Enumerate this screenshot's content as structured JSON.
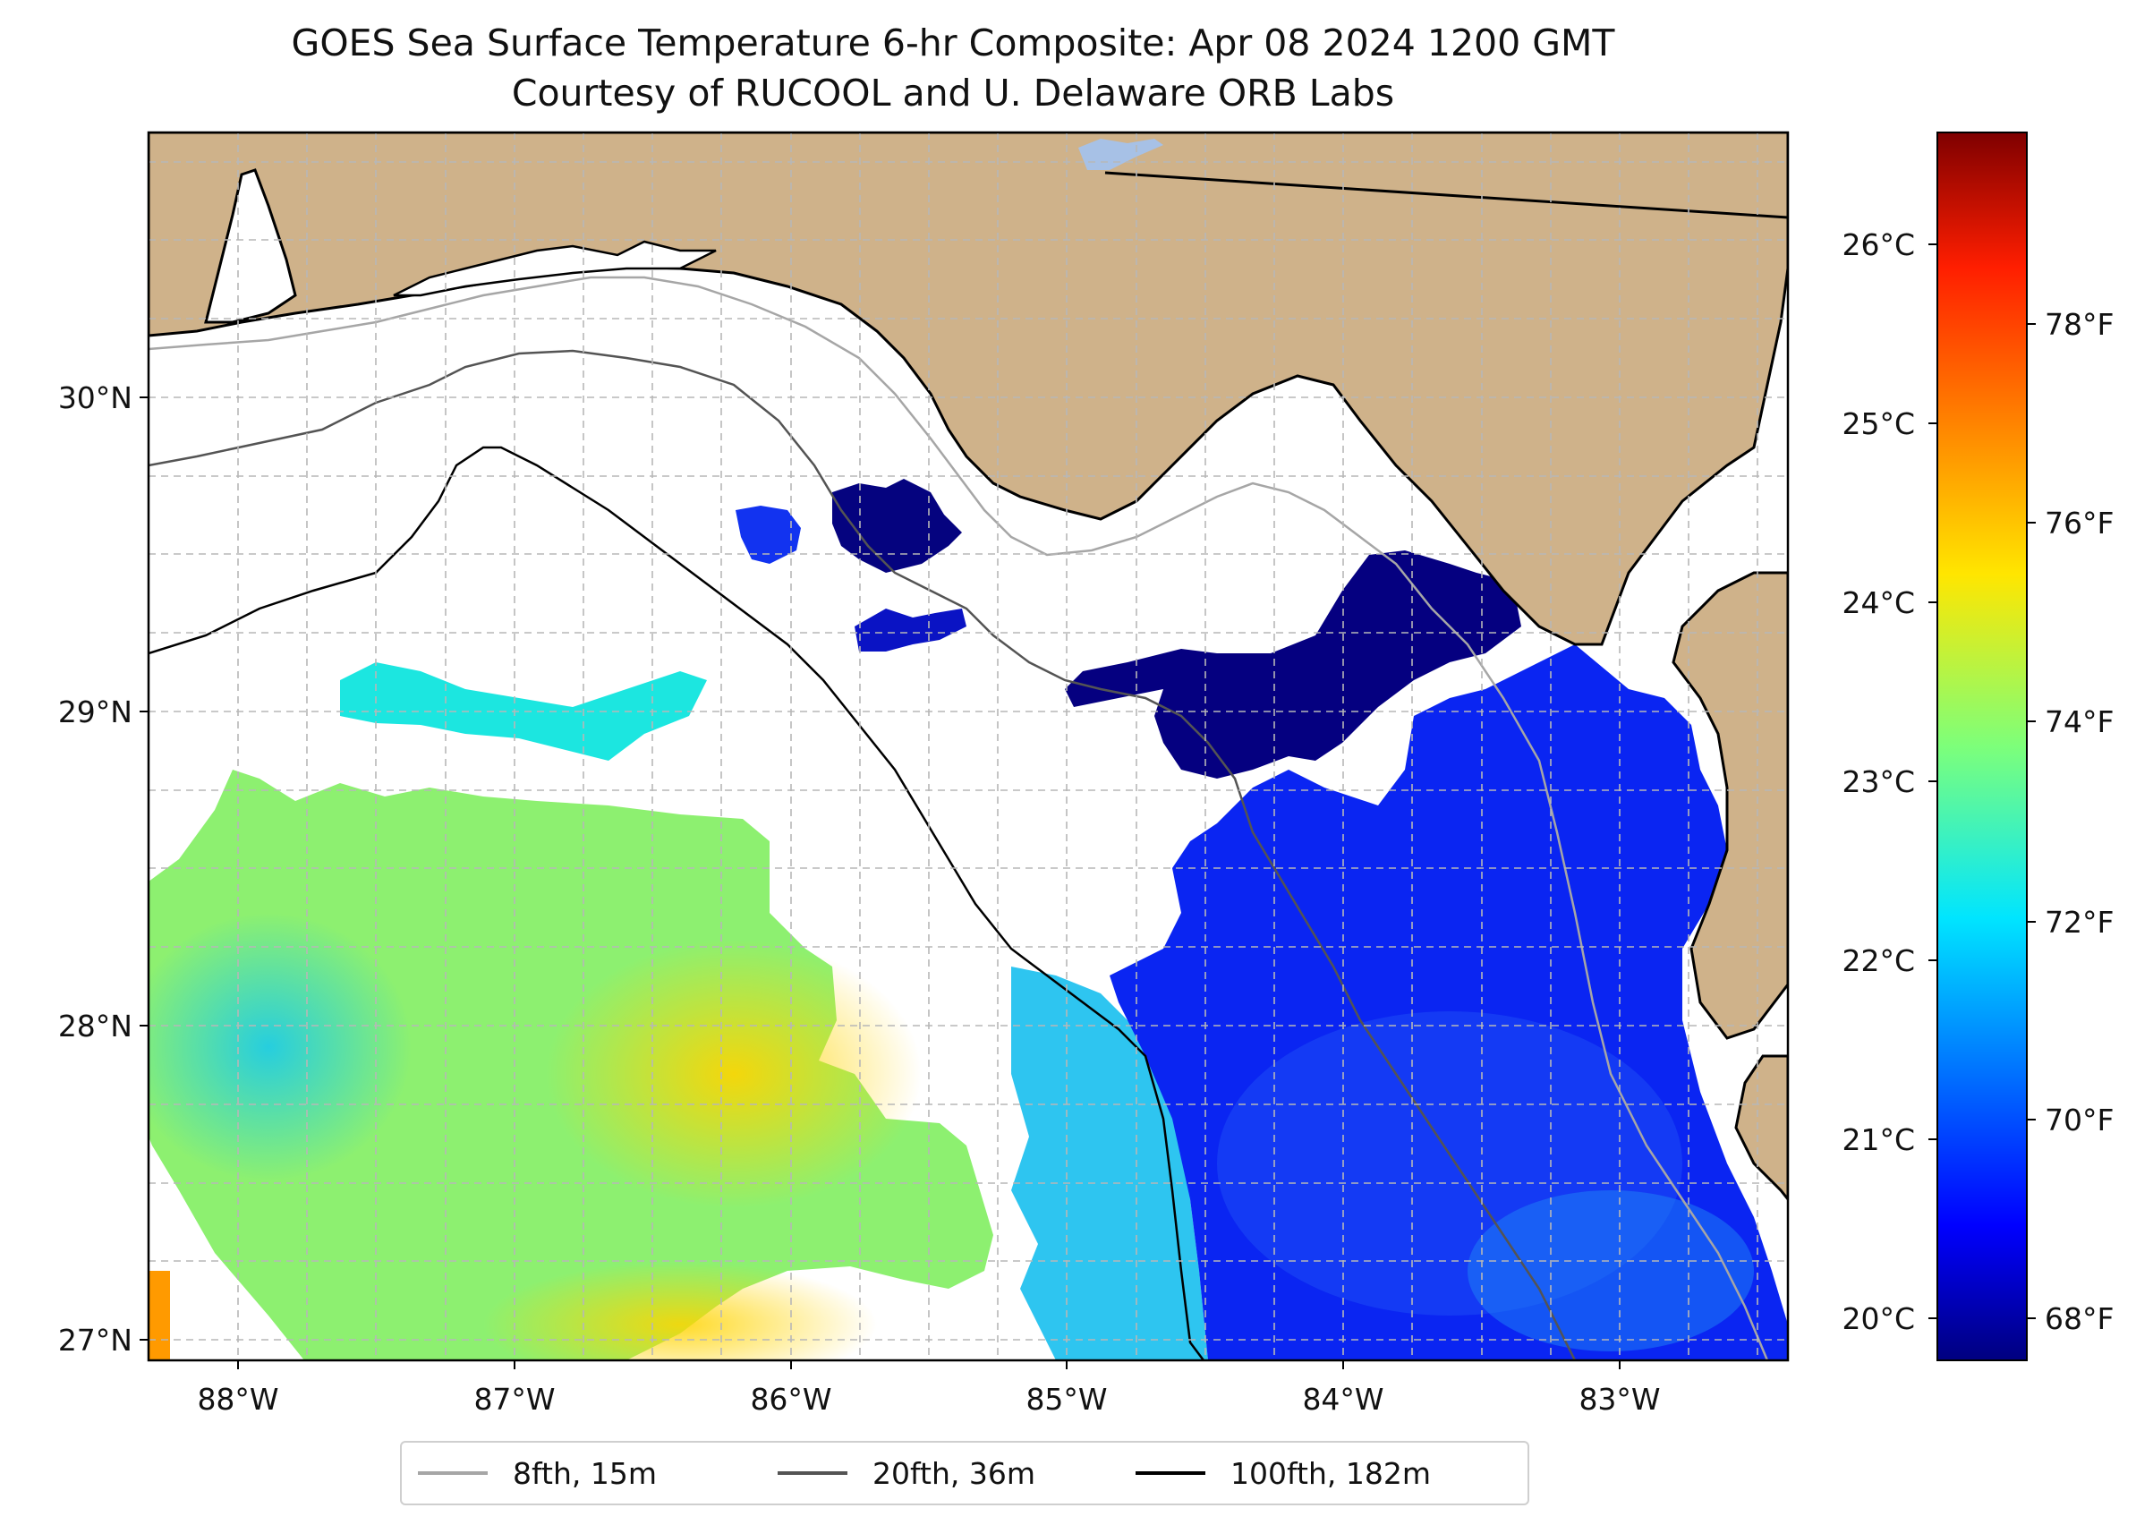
{
  "title_line1": "GOES Sea Surface Temperature 6-hr Composite: Apr 08 2024 1200 GMT",
  "title_line2": "Courtesy of RUCOOL and U. Delaware ORB Labs",
  "map": {
    "lon_range": [
      -88.33,
      -82.4
    ],
    "lat_range": [
      26.93,
      30.83
    ],
    "lon_ticks": [
      "88°W",
      "87°W",
      "86°W",
      "85°W",
      "84°W",
      "83°W"
    ],
    "lat_ticks": [
      "27°N",
      "28°N",
      "29°N",
      "30°N"
    ],
    "land_color": "#cfb28a",
    "nodata_color": "#ffffff",
    "gridlines": true
  },
  "colorbar": {
    "celsius_ticks": [
      "20°C",
      "21°C",
      "22°C",
      "23°C",
      "24°C",
      "25°C",
      "26°C"
    ],
    "fahrenheit_ticks": [
      "68°F",
      "70°F",
      "72°F",
      "74°F",
      "76°F",
      "78°F"
    ],
    "range_c": [
      19.8,
      26.65
    ],
    "colormap": "jet"
  },
  "legend": {
    "items": [
      {
        "label": "8fth, 15m",
        "color": "#a6a6a6"
      },
      {
        "label": "20fth, 36m",
        "color": "#545454"
      },
      {
        "label": "100fth, 182m",
        "color": "#000000"
      }
    ]
  }
}
